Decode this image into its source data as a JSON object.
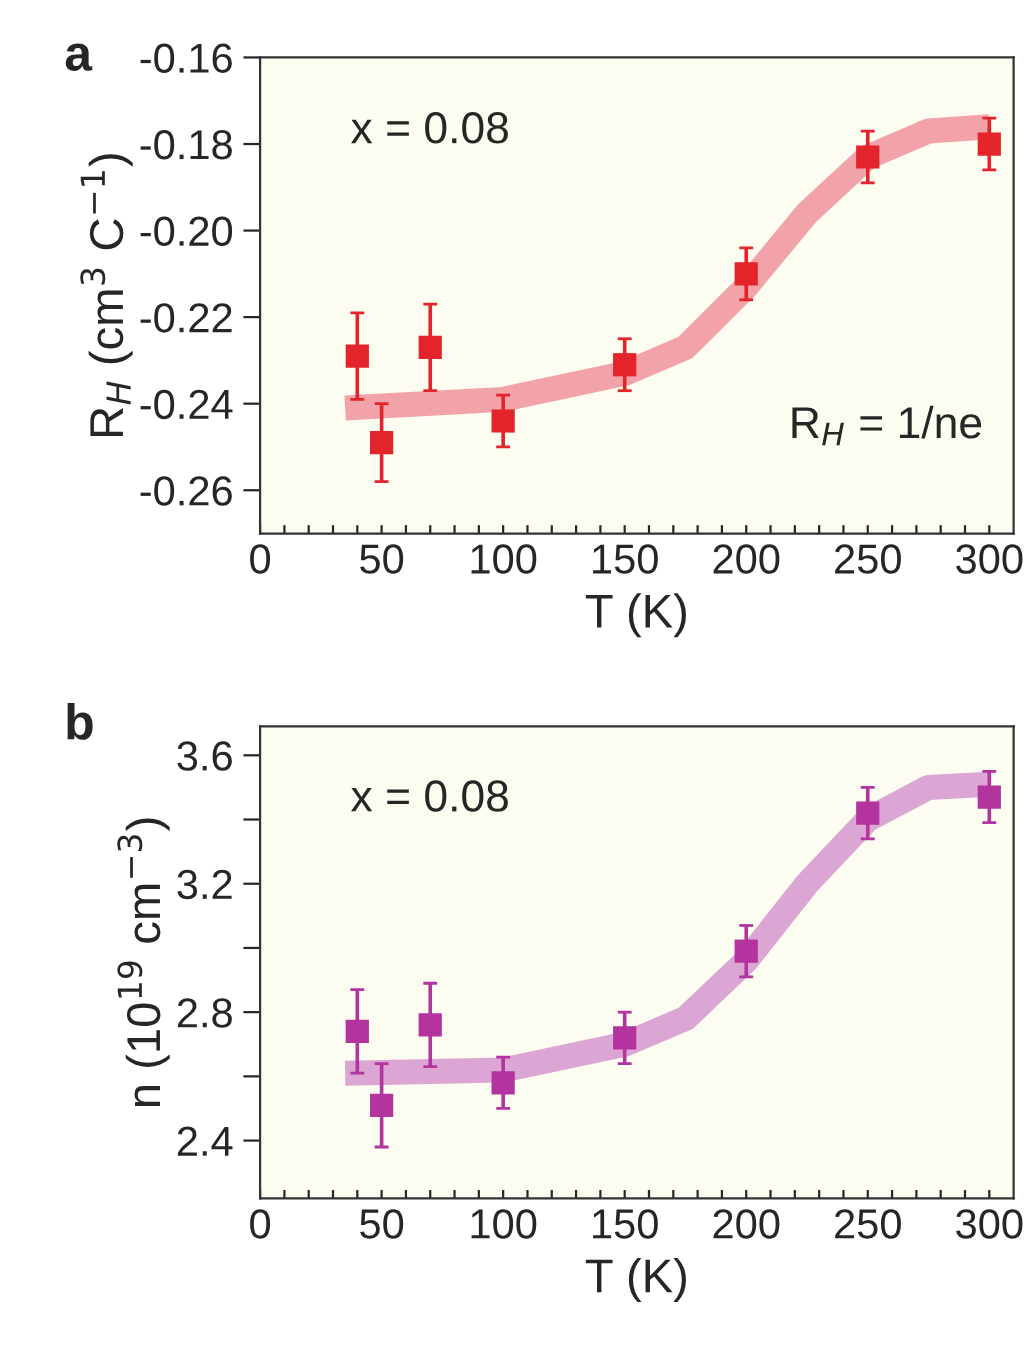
{
  "chart_data": [
    {
      "type": "scatter",
      "title": "a",
      "xlabel": "T (K)",
      "ylabel": "R$_{H}$ (cm$^{3}$ C$^{−1}$)",
      "annotations": [
        "x = 0.08",
        "R$_{H}$ = 1/ne"
      ],
      "grid": false,
      "legend": false,
      "xlim": [
        0,
        310
      ],
      "xticks": [
        0,
        {
          "value": 10,
          "label": null
        },
        {
          "value": 20,
          "label": null
        },
        {
          "value": 30,
          "label": null
        },
        {
          "value": 40,
          "label": null
        },
        50,
        {
          "value": 60,
          "label": null
        },
        {
          "value": 70,
          "label": null
        },
        {
          "value": 80,
          "label": null
        },
        {
          "value": 90,
          "label": null
        },
        100,
        {
          "value": 110,
          "label": null
        },
        {
          "value": 120,
          "label": null
        },
        {
          "value": 130,
          "label": null
        },
        {
          "value": 140,
          "label": null
        },
        150,
        {
          "value": 160,
          "label": null
        },
        {
          "value": 170,
          "label": null
        },
        {
          "value": 180,
          "label": null
        },
        {
          "value": 190,
          "label": null
        },
        200,
        {
          "value": 210,
          "label": null
        },
        {
          "value": 220,
          "label": null
        },
        {
          "value": 230,
          "label": null
        },
        {
          "value": 240,
          "label": null
        },
        250,
        {
          "value": 260,
          "label": null
        },
        {
          "value": 270,
          "label": null
        },
        {
          "value": 280,
          "label": null
        },
        {
          "value": 290,
          "label": null
        },
        300
      ],
      "ylim": [
        -0.27,
        -0.16
      ],
      "yticks": [
        -0.26,
        -0.24,
        -0.22,
        {
          "value": -0.2,
          "label": "-0.20"
        },
        -0.18,
        -0.16
      ],
      "series": [
        {
          "type": "line",
          "marker": "none",
          "color": "#f2a3aa",
          "x": [
            35,
            100,
            150,
            175,
            200,
            225,
            250,
            275,
            300
          ],
          "values": [
            -0.241,
            -0.239,
            -0.233,
            -0.227,
            -0.213,
            -0.196,
            -0.183,
            -0.177,
            -0.176
          ]
        },
        {
          "marker": "square",
          "color": "#e3242b",
          "x": [
            40,
            50,
            70,
            100,
            150,
            200,
            250,
            300
          ],
          "values": [
            -0.229,
            -0.249,
            -0.227,
            -0.244,
            -0.231,
            -0.21,
            -0.183,
            -0.18
          ],
          "errors": [
            0.01,
            0.009,
            0.01,
            0.006,
            0.006,
            0.006,
            0.006,
            0.006
          ]
        }
      ]
    },
    {
      "type": "scatter",
      "title": "b",
      "xlabel": "T (K)",
      "ylabel": "n (10$^{19}$ cm$^{−3}$)",
      "annotations": [
        "x = 0.08"
      ],
      "grid": false,
      "legend": false,
      "xlim": [
        0,
        310
      ],
      "xticks": [
        0,
        {
          "value": 10,
          "label": null
        },
        {
          "value": 20,
          "label": null
        },
        {
          "value": 30,
          "label": null
        },
        {
          "value": 40,
          "label": null
        },
        50,
        {
          "value": 60,
          "label": null
        },
        {
          "value": 70,
          "label": null
        },
        {
          "value": 80,
          "label": null
        },
        {
          "value": 90,
          "label": null
        },
        100,
        {
          "value": 110,
          "label": null
        },
        {
          "value": 120,
          "label": null
        },
        {
          "value": 130,
          "label": null
        },
        {
          "value": 140,
          "label": null
        },
        150,
        {
          "value": 160,
          "label": null
        },
        {
          "value": 170,
          "label": null
        },
        {
          "value": 180,
          "label": null
        },
        {
          "value": 190,
          "label": null
        },
        200,
        {
          "value": 210,
          "label": null
        },
        {
          "value": 220,
          "label": null
        },
        {
          "value": 230,
          "label": null
        },
        {
          "value": 240,
          "label": null
        },
        250,
        {
          "value": 260,
          "label": null
        },
        {
          "value": 270,
          "label": null
        },
        {
          "value": 280,
          "label": null
        },
        {
          "value": 290,
          "label": null
        },
        300
      ],
      "ylim": [
        2.22,
        3.69
      ],
      "yticks": [
        2.4,
        {
          "value": 2.6,
          "label": null
        },
        2.8,
        {
          "value": 3.0,
          "label": null
        },
        3.2,
        {
          "value": 3.4,
          "label": null
        },
        3.6
      ],
      "series": [
        {
          "type": "line",
          "marker": "none",
          "color": "#dba6d3",
          "x": [
            35,
            100,
            150,
            175,
            200,
            225,
            250,
            275,
            300
          ],
          "values": [
            2.61,
            2.62,
            2.7,
            2.78,
            2.96,
            3.2,
            3.4,
            3.5,
            3.51
          ]
        },
        {
          "marker": "square",
          "color": "#b3339f",
          "x": [
            40,
            50,
            70,
            100,
            150,
            200,
            250,
            300
          ],
          "values": [
            2.74,
            2.51,
            2.76,
            2.58,
            2.72,
            2.99,
            3.42,
            3.47
          ],
          "errors": [
            0.13,
            0.13,
            0.13,
            0.08,
            0.08,
            0.08,
            0.08,
            0.08
          ]
        }
      ]
    }
  ]
}
